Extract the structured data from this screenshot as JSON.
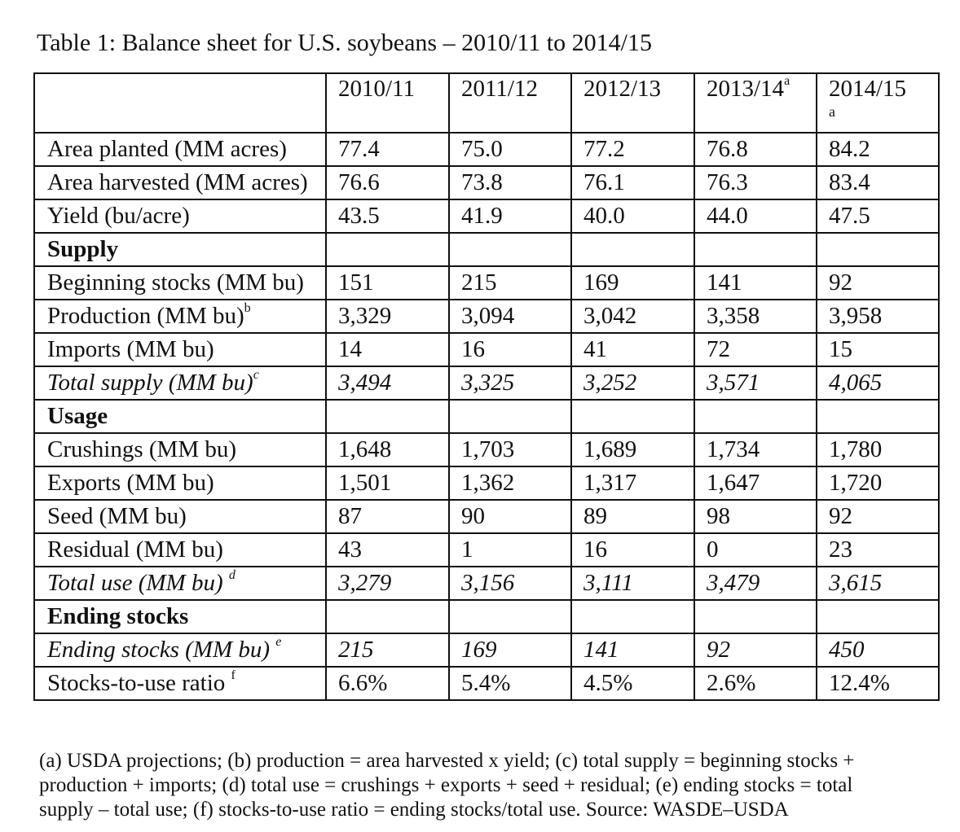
{
  "caption": "Table 1: Balance sheet for U.S. soybeans – 2010/11 to 2014/15",
  "columns": [
    {
      "year": "2010/11",
      "sup": ""
    },
    {
      "year": "2011/12",
      "sup": ""
    },
    {
      "year": "2012/13",
      "sup": ""
    },
    {
      "year": "2013/14",
      "sup": "a"
    },
    {
      "year": "2014/15",
      "sup": "a"
    }
  ],
  "rows": {
    "area_planted": {
      "label": "Area planted (MM acres)",
      "values": [
        "77.4",
        "75.0",
        "77.2",
        "76.8",
        "84.2"
      ]
    },
    "area_harvested": {
      "label": "Area harvested (MM acres)",
      "values": [
        "76.6",
        "73.8",
        "76.1",
        "76.3",
        "83.4"
      ]
    },
    "yield": {
      "label": "Yield (bu/acre)",
      "values": [
        "43.5",
        "41.9",
        "40.0",
        "44.0",
        "47.5"
      ]
    },
    "supply_heading": {
      "label": "Supply"
    },
    "beginning_stocks": {
      "label": "Beginning stocks (MM bu)",
      "values": [
        "151",
        "215",
        "169",
        "141",
        "92"
      ]
    },
    "production": {
      "label": "Production (MM bu)",
      "sup": "b",
      "values": [
        "3,329",
        "3,094",
        "3,042",
        "3,358",
        "3,958"
      ]
    },
    "imports": {
      "label": "Imports (MM bu)",
      "values": [
        "14",
        "16",
        "41",
        "72",
        "15"
      ]
    },
    "total_supply": {
      "label": "Total supply (MM bu)",
      "sup": "c",
      "values": [
        "3,494",
        "3,325",
        "3,252",
        "3,571",
        "4,065"
      ]
    },
    "usage_heading": {
      "label": "Usage"
    },
    "crushings": {
      "label": "Crushings (MM bu)",
      "values": [
        "1,648",
        "1,703",
        "1,689",
        "1,734",
        "1,780"
      ]
    },
    "exports": {
      "label": "Exports (MM bu)",
      "values": [
        "1,501",
        "1,362",
        "1,317",
        "1,647",
        "1,720"
      ]
    },
    "seed": {
      "label": "Seed (MM bu)",
      "values": [
        "87",
        "90",
        "89",
        "98",
        "92"
      ]
    },
    "residual": {
      "label": "Residual (MM bu)",
      "values": [
        "43",
        "1",
        "16",
        "0",
        "23"
      ]
    },
    "total_use": {
      "label": "Total use (MM bu)",
      "sup": "d",
      "values": [
        "3,279",
        "3,156",
        "3,111",
        "3,479",
        "3,615"
      ]
    },
    "ending_heading": {
      "label": "Ending stocks"
    },
    "ending_stocks": {
      "label": "Ending stocks (MM bu)",
      "sup": "e",
      "values": [
        "215",
        "169",
        "141",
        "92",
        "450"
      ]
    },
    "stocks_to_use": {
      "label": "Stocks-to-use ratio",
      "sup": "f",
      "values": [
        "6.6%",
        "5.4%",
        "4.5%",
        "2.6%",
        "12.4%"
      ]
    }
  },
  "notes": [
    "(a) USDA projections; (b) production = area harvested x yield; (c) total supply = beginning stocks +",
    "production + imports; (d) total use = crushings + exports + seed + residual; (e) ending stocks = total",
    "supply – total use; (f) stocks-to-use ratio = ending stocks/total use. Source: WASDE–USDA"
  ]
}
